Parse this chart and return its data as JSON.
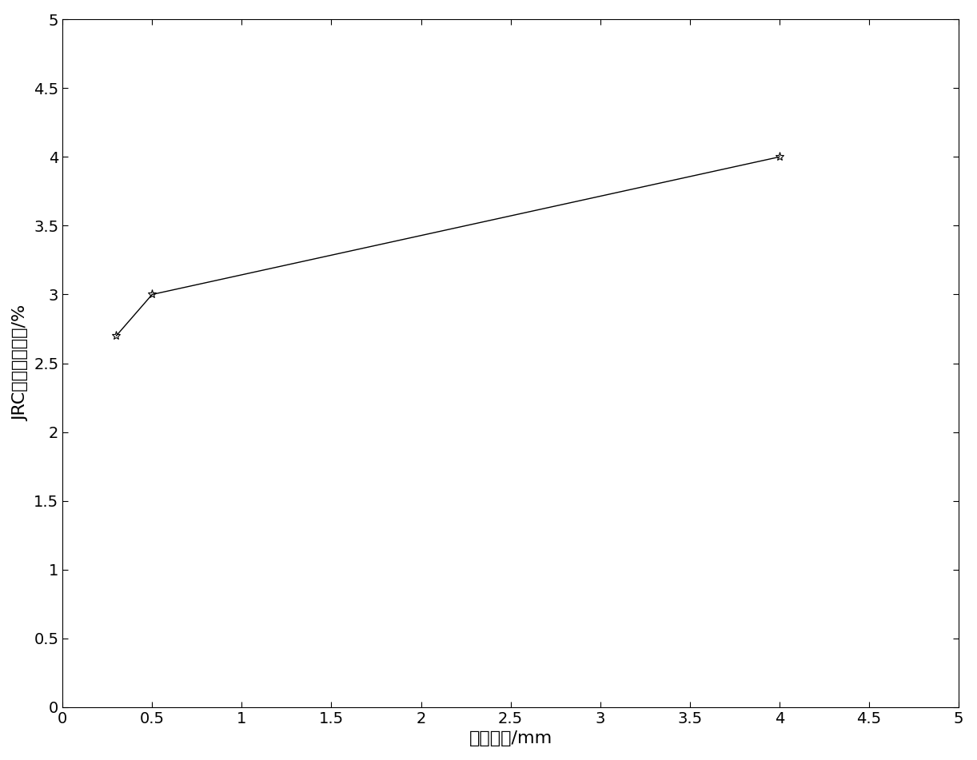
{
  "x": [
    0.3,
    0.5,
    4.0
  ],
  "y": [
    2.7,
    3.0,
    4.0
  ],
  "xlabel": "采样间距/mm",
  "ylabel": "JRC平均相对误差/%",
  "xlim": [
    0,
    5
  ],
  "ylim": [
    0,
    5
  ],
  "xticks": [
    0,
    0.5,
    1,
    1.5,
    2,
    2.5,
    3,
    3.5,
    4,
    4.5,
    5
  ],
  "yticks": [
    0,
    0.5,
    1,
    1.5,
    2,
    2.5,
    3,
    3.5,
    4,
    4.5,
    5
  ],
  "line_color": "#000000",
  "marker": "*",
  "marker_size": 8,
  "linewidth": 1.0,
  "background_color": "#ffffff",
  "tick_label_fontsize": 14,
  "axis_label_fontsize": 16
}
